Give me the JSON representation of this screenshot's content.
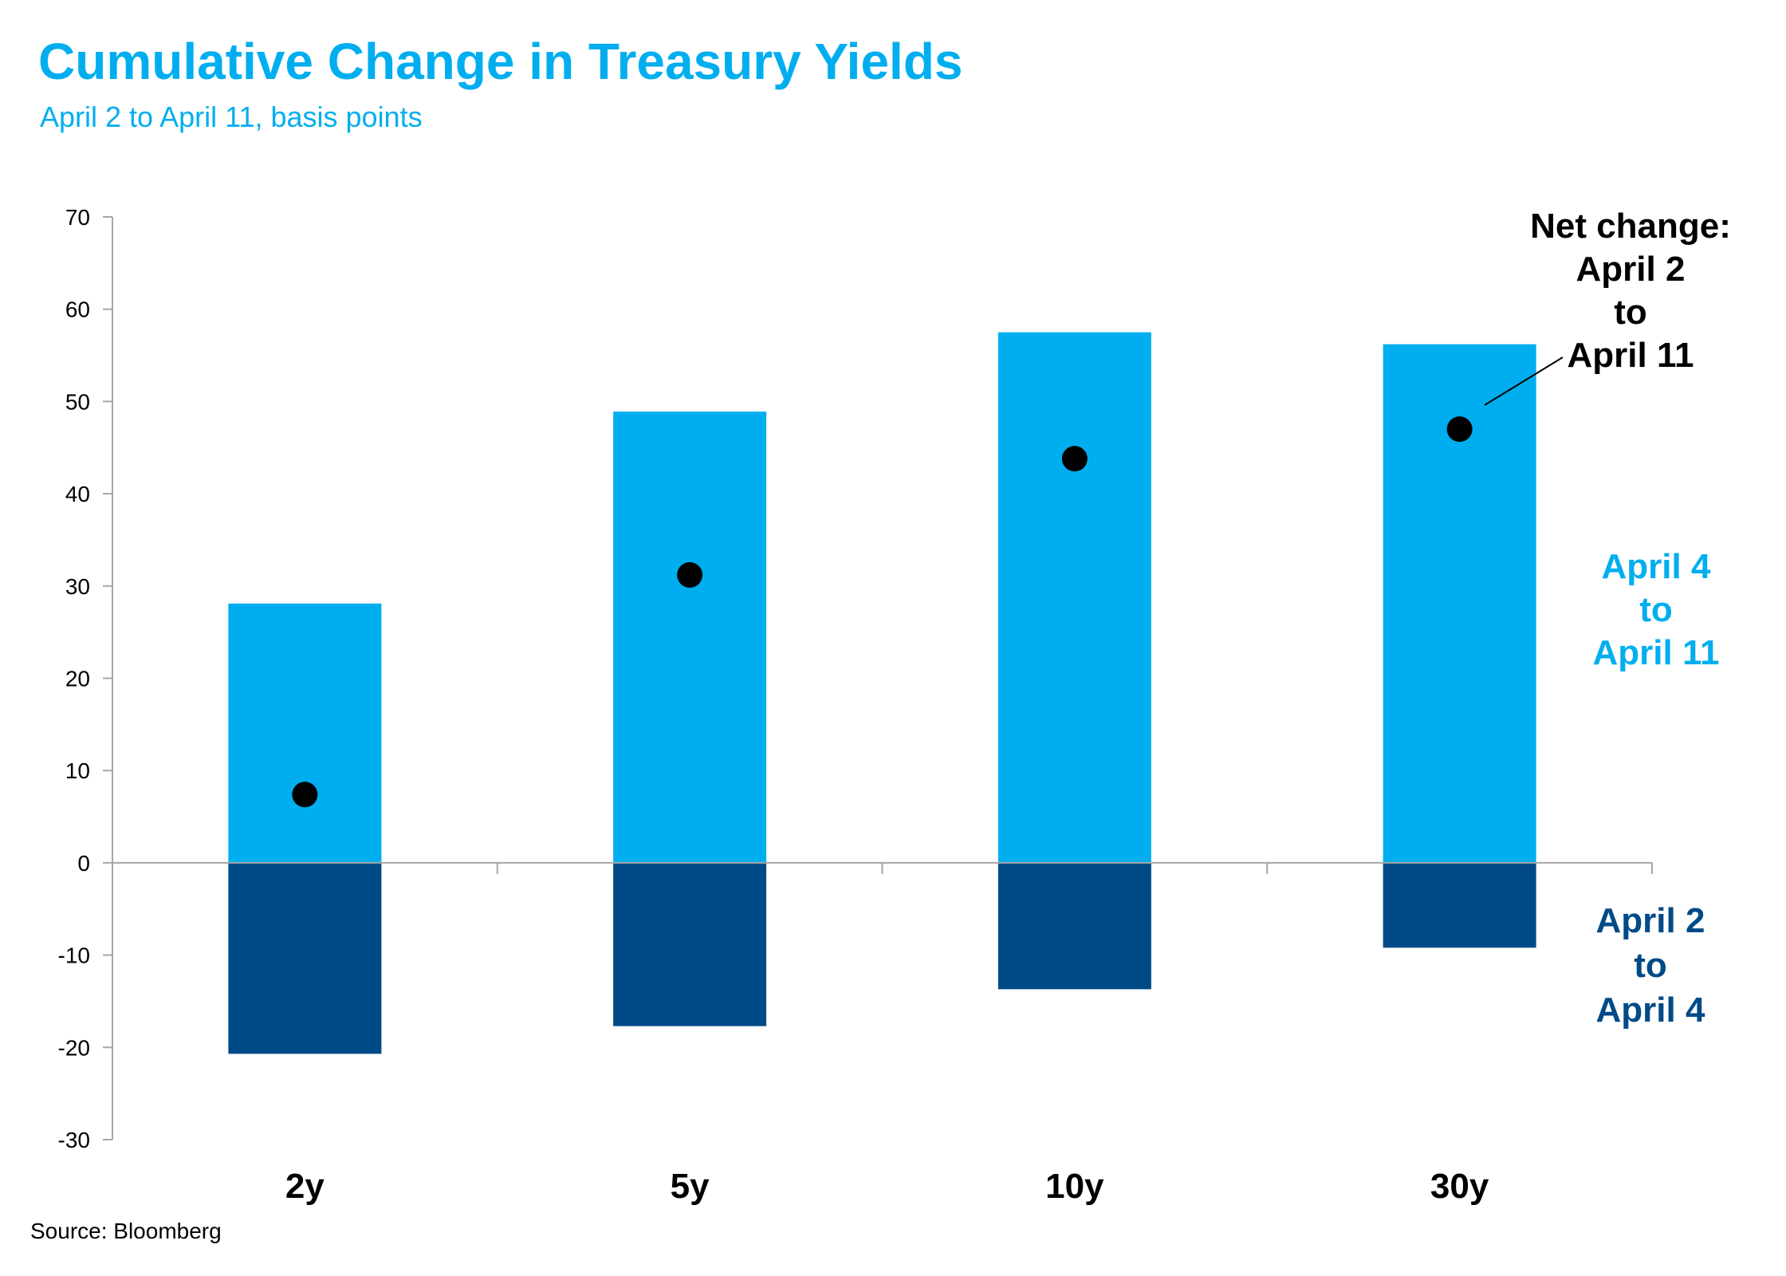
{
  "chart_data": {
    "type": "bar",
    "title": "Cumulative Change in Treasury Yields",
    "subtitle": "April 2 to April 11, basis points",
    "source": "Source: Bloomberg",
    "categories": [
      "2y",
      "5y",
      "10y",
      "30y"
    ],
    "ylim": [
      -30,
      70
    ],
    "yticks": [
      70,
      60,
      50,
      40,
      30,
      20,
      10,
      0,
      -10,
      -20,
      -30
    ],
    "grid": false,
    "series": [
      {
        "name": "April 2 to April 4",
        "color": "#004a87",
        "values": [
          -20.7,
          -17.7,
          -13.7,
          -9.2
        ]
      },
      {
        "name": "April 4 to April 11",
        "color": "#00aeef",
        "values": [
          28.1,
          48.9,
          57.5,
          56.2
        ]
      },
      {
        "name": "Net change: April 2 to April 11",
        "color": "#000000",
        "type": "scatter",
        "values": [
          7.4,
          31.2,
          43.8,
          47.0
        ]
      }
    ],
    "annotations": {
      "net_change": [
        "Net change:",
        "April 2",
        "to",
        "April 11"
      ],
      "apr4_to_apr11": [
        "April 4",
        "to",
        "April 11"
      ],
      "apr2_to_apr4": [
        "April 2",
        "to",
        "April 4"
      ]
    }
  }
}
